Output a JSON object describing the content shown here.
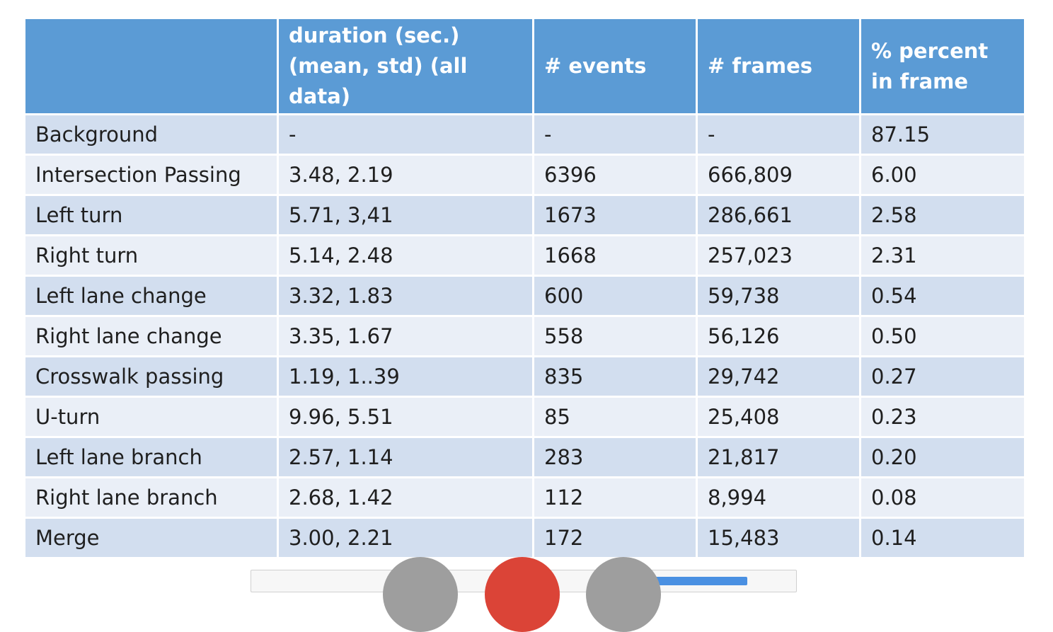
{
  "table": {
    "headers": [
      "",
      "duration (sec.)\n(mean, std) (all data)",
      "# events",
      "# frames",
      "% percent in frame"
    ],
    "rows": [
      [
        "Background",
        "-",
        "-",
        "-",
        "87.15"
      ],
      [
        "Intersection Passing",
        "3.48, 2.19",
        "6396",
        "666,809",
        "6.00"
      ],
      [
        "Left turn",
        "5.71, 3,41",
        "1673",
        "286,661",
        "2.58"
      ],
      [
        "Right turn",
        "5.14, 2.48",
        "1668",
        "257,023",
        "2.31"
      ],
      [
        "Left lane change",
        "3.32, 1.83",
        "600",
        "59,738",
        "0.54"
      ],
      [
        "Right lane change",
        "3.35, 1.67",
        "558",
        "56,126",
        "0.50"
      ],
      [
        "Crosswalk passing",
        "1.19, 1..39",
        "835",
        "29,742",
        "0.27"
      ],
      [
        "U-turn",
        "9.96, 5.51",
        "85",
        "25,408",
        "0.23"
      ],
      [
        "Left lane branch",
        "2.57, 1.14",
        "283",
        "21,817",
        "0.20"
      ],
      [
        "Right lane branch",
        "2.68, 1.42",
        "112",
        "8,994",
        "0.08"
      ],
      [
        "Merge",
        "3.00, 2.21",
        "172",
        "15,483",
        "0.14"
      ]
    ]
  },
  "colors": {
    "header_bg": "#5b9bd5",
    "row_odd_bg": "#d2deef",
    "row_even_bg": "#eaeff7"
  }
}
